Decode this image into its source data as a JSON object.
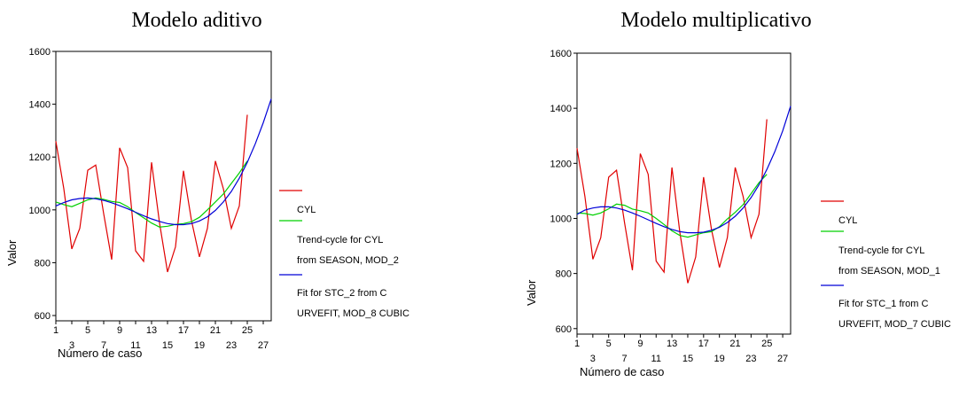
{
  "chart_data": [
    {
      "type": "line",
      "title": "Modelo aditivo",
      "xlabel": "Número de caso",
      "ylabel": "Valor",
      "ylim": [
        580,
        1600
      ],
      "xlim": [
        1,
        28
      ],
      "y_ticks": [
        "600",
        "800",
        "1000",
        "1200",
        "1400",
        "1600"
      ],
      "x_ticks_top": [
        "1",
        "5",
        "9",
        "13",
        "17",
        "21",
        "25"
      ],
      "x_ticks_bottom": [
        "3",
        "7",
        "11",
        "15",
        "19",
        "23",
        "27"
      ],
      "legend_lines": [
        "CYL",
        "Trend-cycle for CYL",
        "from SEASON, MOD_2",
        "Fit for STC_2 from C",
        "URVEFIT, MOD_8 CUBIC"
      ],
      "series": [
        {
          "name": "CYL",
          "color": "#e00000",
          "x": [
            1,
            2,
            3,
            4,
            5,
            6,
            7,
            8,
            9,
            10,
            11,
            12,
            13,
            14,
            15,
            16,
            17,
            18,
            19,
            20,
            21,
            22,
            23,
            24,
            25
          ],
          "y": [
            1260,
            1080,
            852,
            930,
            1150,
            1170,
            985,
            812,
            1235,
            1160,
            845,
            805,
            1180,
            950,
            765,
            860,
            1148,
            960,
            822,
            930,
            1185,
            1080,
            930,
            1015,
            1360
          ]
        },
        {
          "name": "Trend-cycle for CYL",
          "color": "#00d000",
          "x": [
            1,
            2,
            3,
            4,
            5,
            6,
            7,
            8,
            9,
            10,
            11,
            12,
            13,
            14,
            15,
            16,
            17,
            18,
            19,
            20,
            21,
            22,
            23,
            24,
            25
          ],
          "y": [
            1030,
            1020,
            1012,
            1025,
            1038,
            1045,
            1040,
            1032,
            1028,
            1012,
            990,
            970,
            950,
            935,
            938,
            945,
            948,
            955,
            972,
            1000,
            1030,
            1060,
            1100,
            1140,
            1185
          ]
        },
        {
          "name": "Fit for STC_2 from CURVEFIT, MOD_8 CUBIC",
          "color": "#0000d8",
          "x": [
            1,
            2,
            3,
            4,
            5,
            6,
            7,
            8,
            9,
            10,
            11,
            12,
            13,
            14,
            15,
            16,
            17,
            18,
            19,
            20,
            21,
            22,
            23,
            24,
            25,
            26,
            27,
            28
          ],
          "y": [
            1015,
            1028,
            1038,
            1043,
            1045,
            1042,
            1036,
            1027,
            1016,
            1004,
            991,
            978,
            966,
            956,
            948,
            944,
            944,
            948,
            958,
            974,
            998,
            1030,
            1070,
            1120,
            1180,
            1250,
            1330,
            1420
          ]
        }
      ]
    },
    {
      "type": "line",
      "title": "Modelo multiplicativo",
      "xlabel": "Número de caso",
      "ylabel": "Valor",
      "ylim": [
        580,
        1600
      ],
      "xlim": [
        1,
        28
      ],
      "y_ticks": [
        "600",
        "800",
        "1000",
        "1200",
        "1400",
        "1600"
      ],
      "x_ticks_top": [
        "1",
        "5",
        "9",
        "13",
        "17",
        "21",
        "25"
      ],
      "x_ticks_bottom": [
        "3",
        "7",
        "11",
        "15",
        "19",
        "23",
        "27"
      ],
      "legend_lines": [
        "CYL",
        "Trend-cycle for CYL",
        "from SEASON, MOD_1",
        "Fit for STC_1 from C",
        "URVEFIT, MOD_7 CUBIC"
      ],
      "series": [
        {
          "name": "CYL",
          "color": "#e00000",
          "x": [
            1,
            2,
            3,
            4,
            5,
            6,
            7,
            8,
            9,
            10,
            11,
            12,
            13,
            14,
            15,
            16,
            17,
            18,
            19,
            20,
            21,
            22,
            23,
            24,
            25
          ],
          "y": [
            1255,
            1080,
            852,
            930,
            1150,
            1175,
            985,
            812,
            1235,
            1160,
            845,
            805,
            1185,
            950,
            765,
            860,
            1150,
            960,
            822,
            930,
            1185,
            1080,
            930,
            1015,
            1360
          ]
        },
        {
          "name": "Trend-cycle for CYL",
          "color": "#00d000",
          "x": [
            1,
            2,
            3,
            4,
            5,
            6,
            7,
            8,
            9,
            10,
            11,
            12,
            13,
            14,
            15,
            16,
            17,
            18,
            19,
            20,
            21,
            22,
            23,
            24,
            25
          ],
          "y": [
            1020,
            1018,
            1012,
            1020,
            1035,
            1052,
            1048,
            1034,
            1028,
            1020,
            1000,
            978,
            955,
            938,
            932,
            940,
            948,
            952,
            970,
            998,
            1022,
            1050,
            1090,
            1130,
            1160
          ]
        },
        {
          "name": "Fit for STC_1 from CURVEFIT, MOD_7 CUBIC",
          "color": "#0000d8",
          "x": [
            1,
            2,
            3,
            4,
            5,
            6,
            7,
            8,
            9,
            10,
            11,
            12,
            13,
            14,
            15,
            16,
            17,
            18,
            19,
            20,
            21,
            22,
            23,
            24,
            25,
            26,
            27,
            28
          ],
          "y": [
            1015,
            1030,
            1038,
            1042,
            1042,
            1038,
            1030,
            1020,
            1008,
            995,
            982,
            970,
            960,
            952,
            948,
            948,
            950,
            957,
            968,
            985,
            1008,
            1038,
            1076,
            1122,
            1178,
            1242,
            1318,
            1408
          ]
        }
      ]
    }
  ]
}
